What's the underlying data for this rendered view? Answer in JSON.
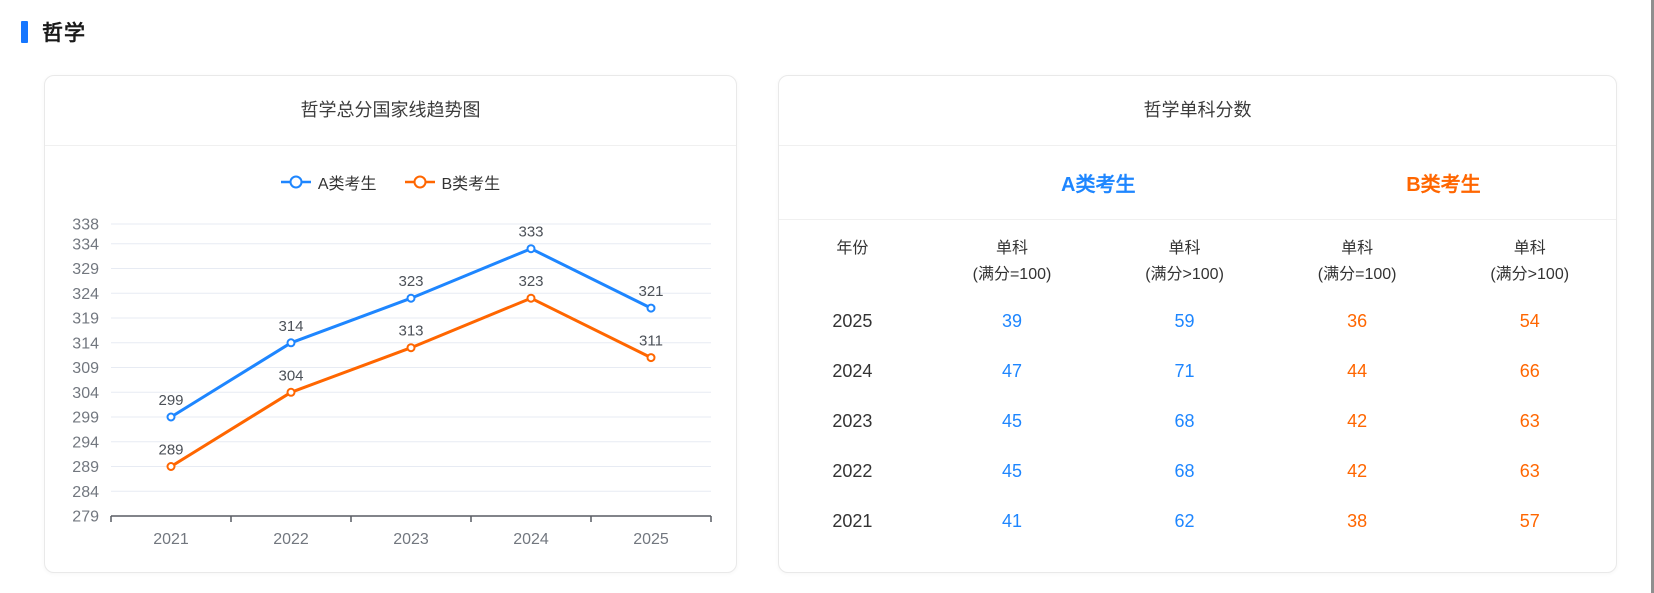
{
  "page": {
    "section_title": "哲学"
  },
  "colors": {
    "accent": "#1677FF",
    "series_a": "#1E86FF",
    "series_b": "#FF6600",
    "grid_line": "#e7ebf3",
    "axis_line": "#585c63",
    "axis_label": "#72777f",
    "data_label": "#4c5158",
    "year_text": "#333333"
  },
  "chart_card": {
    "title": "哲学总分国家线趋势图"
  },
  "chart_data": {
    "type": "line",
    "title": "哲学总分国家线趋势图",
    "categories": [
      "2021",
      "2022",
      "2023",
      "2024",
      "2025"
    ],
    "series": [
      {
        "name": "A类考生",
        "color": "#1E86FF",
        "values": [
          299,
          314,
          323,
          333,
          321
        ]
      },
      {
        "name": "B类考生",
        "color": "#FF6600",
        "values": [
          289,
          304,
          313,
          323,
          311
        ]
      }
    ],
    "y_ticks": [
      279,
      284,
      289,
      294,
      299,
      304,
      309,
      314,
      319,
      324,
      329,
      334,
      338
    ],
    "ylim": [
      279,
      338
    ],
    "grid": true,
    "legend_position": "top",
    "data_labels": true,
    "marker": "hollow-circle"
  },
  "table_card": {
    "title": "哲学单科分数",
    "groups": [
      {
        "label": "A类考生",
        "color": "#1E86FF"
      },
      {
        "label": "B类考生",
        "color": "#FF6600"
      }
    ],
    "columns": [
      {
        "title": "年份",
        "sub": ""
      },
      {
        "title": "单科",
        "sub": "(满分=100)"
      },
      {
        "title": "单科",
        "sub": "(满分>100)"
      },
      {
        "title": "单科",
        "sub": "(满分=100)"
      },
      {
        "title": "单科",
        "sub": "(满分>100)"
      }
    ],
    "col_colors": [
      "#333333",
      "#1E86FF",
      "#1E86FF",
      "#FF6600",
      "#FF6600"
    ],
    "rows": [
      [
        "2025",
        "39",
        "59",
        "36",
        "54"
      ],
      [
        "2024",
        "47",
        "71",
        "44",
        "66"
      ],
      [
        "2023",
        "45",
        "68",
        "42",
        "63"
      ],
      [
        "2022",
        "45",
        "68",
        "42",
        "63"
      ],
      [
        "2021",
        "41",
        "62",
        "38",
        "57"
      ]
    ]
  }
}
